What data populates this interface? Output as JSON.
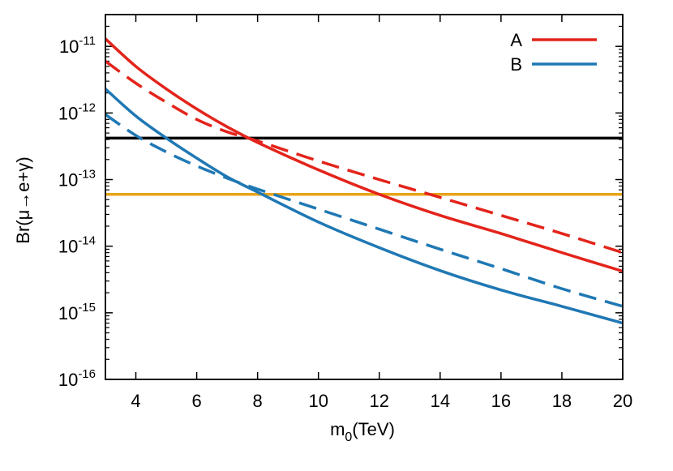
{
  "chart_data": {
    "type": "line",
    "xlabel": "m",
    "xlabel_sub": "0",
    "xlabel_unit": "(TeV)",
    "ylabel": "Br(μ→e+γ)",
    "xlim": [
      3,
      20
    ],
    "ylim": [
      1e-16,
      3e-11
    ],
    "yscale": "log",
    "x_ticks": [
      4,
      6,
      8,
      10,
      12,
      14,
      16,
      18,
      20
    ],
    "y_ticks": [
      {
        "base": "10",
        "exp": "-11",
        "value": 1e-11
      },
      {
        "base": "10",
        "exp": "-12",
        "value": 1e-12
      },
      {
        "base": "10",
        "exp": "-13",
        "value": 1e-13
      },
      {
        "base": "10",
        "exp": "-14",
        "value": 1e-14
      },
      {
        "base": "10",
        "exp": "-15",
        "value": 1e-15
      },
      {
        "base": "10",
        "exp": "-16",
        "value": 1e-16
      }
    ],
    "legend_position": "top-right",
    "x": [
      3,
      4,
      5,
      6,
      7,
      8,
      10,
      12,
      14,
      16,
      18,
      20
    ],
    "series": [
      {
        "name": "A",
        "color": "#e3241b",
        "style": "solid",
        "values": [
          1.3e-11,
          5e-12,
          2.3e-12,
          1.15e-12,
          6.2e-13,
          3.6e-13,
          1.4e-13,
          6e-14,
          2.9e-14,
          1.55e-14,
          8e-15,
          4.2e-15
        ]
      },
      {
        "name": "",
        "color": "#e3241b",
        "style": "dashed",
        "values": [
          6e-12,
          2.8e-12,
          1.45e-12,
          8e-13,
          5.2e-13,
          3.8e-13,
          1.9e-13,
          1e-13,
          5.4e-14,
          2.9e-14,
          1.55e-14,
          8e-15
        ]
      },
      {
        "name": "B",
        "color": "#1f78b4",
        "style": "solid",
        "values": [
          2.3e-12,
          9e-13,
          4.2e-13,
          2.1e-13,
          1.1e-13,
          6.5e-14,
          2.3e-14,
          9.5e-15,
          4.3e-15,
          2.2e-15,
          1.25e-15,
          7e-16
        ]
      },
      {
        "name": "",
        "color": "#1f78b4",
        "style": "dashed",
        "values": [
          9.5e-13,
          4.6e-13,
          2.6e-13,
          1.6e-13,
          1.05e-13,
          7.2e-14,
          3.6e-14,
          1.8e-14,
          9e-15,
          4.6e-15,
          2.3e-15,
          1.25e-15
        ]
      }
    ],
    "hlines": [
      {
        "value": 4.2e-13,
        "color": "#000000"
      },
      {
        "value": 6e-14,
        "color": "#e8a317"
      }
    ]
  }
}
